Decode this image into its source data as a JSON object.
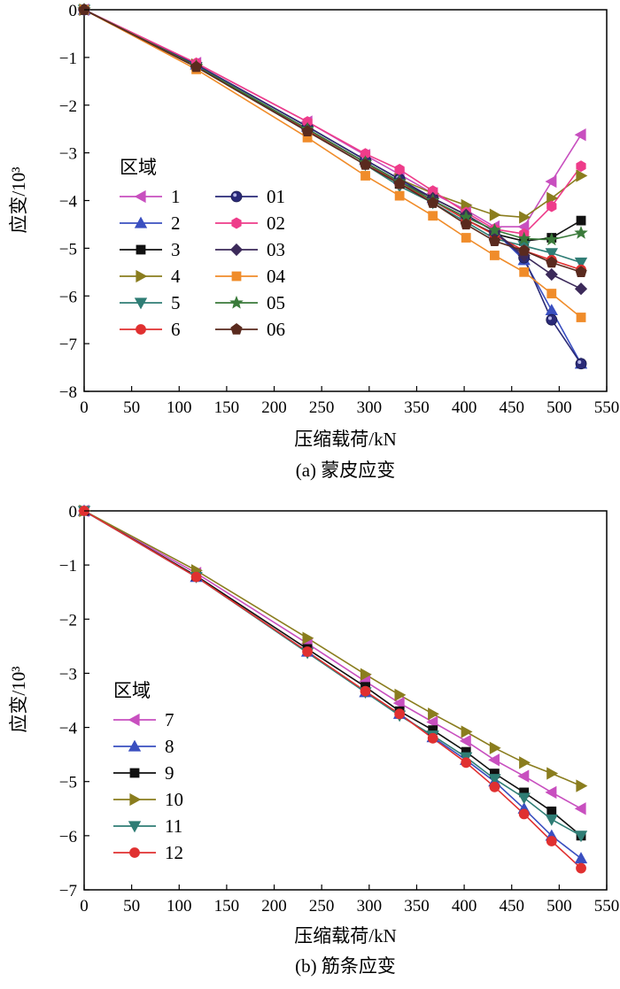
{
  "chart_data": [
    {
      "type": "line",
      "caption": "(a) 蒙皮应变",
      "xlabel": "压缩载荷/kN",
      "ylabel": "应变/10³",
      "xlim": [
        0,
        550
      ],
      "ylim": [
        -8,
        0
      ],
      "xticks": [
        0,
        50,
        100,
        150,
        200,
        250,
        300,
        350,
        400,
        450,
        500,
        550
      ],
      "yticks": [
        0,
        -1,
        -2,
        -3,
        -4,
        -5,
        -6,
        -7,
        -8
      ],
      "legend_title": "区域",
      "x": [
        0,
        118,
        235,
        296,
        332,
        367,
        402,
        432,
        463,
        492,
        523
      ],
      "series": [
        {
          "name": "1",
          "color": "#c84fbf",
          "marker": "tri-left",
          "values": [
            0,
            -1.12,
            -2.35,
            -3.05,
            -3.45,
            -3.85,
            -4.2,
            -4.55,
            -4.55,
            -3.6,
            -2.62
          ]
        },
        {
          "name": "2",
          "color": "#3a4fc0",
          "marker": "tri-up",
          "values": [
            0,
            -1.15,
            -2.45,
            -3.15,
            -3.55,
            -3.95,
            -4.3,
            -4.65,
            -5.25,
            -6.3,
            -7.42
          ]
        },
        {
          "name": "3",
          "color": "#111111",
          "marker": "square",
          "values": [
            0,
            -1.18,
            -2.52,
            -3.2,
            -3.65,
            -4.0,
            -4.4,
            -4.7,
            -4.85,
            -4.78,
            -4.42
          ]
        },
        {
          "name": "4",
          "color": "#8a7d1e",
          "marker": "tri-right",
          "values": [
            0,
            -1.15,
            -2.45,
            -3.15,
            -3.55,
            -3.85,
            -4.1,
            -4.3,
            -4.35,
            -3.95,
            -3.48
          ]
        },
        {
          "name": "5",
          "color": "#2f7d75",
          "marker": "tri-down",
          "values": [
            0,
            -1.2,
            -2.55,
            -3.25,
            -3.7,
            -4.05,
            -4.45,
            -4.8,
            -4.95,
            -5.1,
            -5.3
          ]
        },
        {
          "name": "6",
          "color": "#e03030",
          "marker": "circle",
          "values": [
            0,
            -1.18,
            -2.52,
            -3.2,
            -3.65,
            -4.0,
            -4.4,
            -4.72,
            -5.05,
            -5.25,
            -5.45
          ]
        },
        {
          "name": "01",
          "color": "#2a2a78",
          "marker": "ball",
          "values": [
            0,
            -1.15,
            -2.45,
            -3.15,
            -3.55,
            -3.95,
            -4.3,
            -4.65,
            -5.2,
            -6.5,
            -7.42
          ]
        },
        {
          "name": "02",
          "color": "#ee3c8a",
          "marker": "hexagon",
          "values": [
            0,
            -1.12,
            -2.35,
            -3.02,
            -3.35,
            -3.8,
            -4.25,
            -4.6,
            -4.7,
            -4.12,
            -3.28
          ]
        },
        {
          "name": "03",
          "color": "#3c2a5a",
          "marker": "diamond",
          "values": [
            0,
            -1.2,
            -2.5,
            -3.2,
            -3.6,
            -3.95,
            -4.3,
            -4.65,
            -5.15,
            -5.55,
            -5.85
          ]
        },
        {
          "name": "04",
          "color": "#f08c2a",
          "marker": "square",
          "values": [
            0,
            -1.25,
            -2.68,
            -3.48,
            -3.9,
            -4.32,
            -4.78,
            -5.15,
            -5.5,
            -5.95,
            -6.45
          ]
        },
        {
          "name": "05",
          "color": "#3a7a3a",
          "marker": "star",
          "values": [
            0,
            -1.18,
            -2.5,
            -3.2,
            -3.6,
            -4.0,
            -4.35,
            -4.62,
            -4.8,
            -4.82,
            -4.68
          ]
        },
        {
          "name": "06",
          "color": "#5a2a1e",
          "marker": "pentagon",
          "values": [
            0,
            -1.2,
            -2.55,
            -3.25,
            -3.65,
            -4.05,
            -4.5,
            -4.85,
            -5.05,
            -5.3,
            -5.5
          ]
        }
      ]
    },
    {
      "type": "line",
      "caption": "(b) 筋条应变",
      "xlabel": "压缩载荷/kN",
      "ylabel": "应变/10³",
      "xlim": [
        0,
        550
      ],
      "ylim": [
        -7,
        0
      ],
      "xticks": [
        0,
        50,
        100,
        150,
        200,
        250,
        300,
        350,
        400,
        450,
        500,
        550
      ],
      "yticks": [
        0,
        -1,
        -2,
        -3,
        -4,
        -5,
        -6,
        -7
      ],
      "legend_title": "区域",
      "x": [
        0,
        118,
        235,
        296,
        332,
        367,
        402,
        432,
        463,
        492,
        523
      ],
      "series": [
        {
          "name": "7",
          "color": "#c84fbf",
          "marker": "tri-left",
          "values": [
            0,
            -1.15,
            -2.45,
            -3.15,
            -3.55,
            -3.9,
            -4.25,
            -4.6,
            -4.9,
            -5.2,
            -5.5
          ]
        },
        {
          "name": "8",
          "color": "#3a4fc0",
          "marker": "tri-up",
          "values": [
            0,
            -1.22,
            -2.6,
            -3.35,
            -3.75,
            -4.18,
            -4.6,
            -5.0,
            -5.5,
            -6.0,
            -6.42
          ]
        },
        {
          "name": "9",
          "color": "#111111",
          "marker": "square",
          "values": [
            0,
            -1.2,
            -2.55,
            -3.25,
            -3.7,
            -4.05,
            -4.45,
            -4.85,
            -5.2,
            -5.55,
            -6.0
          ]
        },
        {
          "name": "10",
          "color": "#8a7d1e",
          "marker": "tri-right",
          "values": [
            0,
            -1.1,
            -2.35,
            -3.02,
            -3.4,
            -3.75,
            -4.08,
            -4.38,
            -4.65,
            -4.85,
            -5.08
          ]
        },
        {
          "name": "11",
          "color": "#2f7d75",
          "marker": "tri-down",
          "values": [
            0,
            -1.22,
            -2.62,
            -3.35,
            -3.78,
            -4.15,
            -4.55,
            -4.95,
            -5.3,
            -5.7,
            -6.0
          ]
        },
        {
          "name": "12",
          "color": "#e03030",
          "marker": "circle",
          "values": [
            0,
            -1.22,
            -2.6,
            -3.33,
            -3.75,
            -4.2,
            -4.65,
            -5.1,
            -5.6,
            -6.1,
            -6.6
          ]
        }
      ]
    }
  ]
}
